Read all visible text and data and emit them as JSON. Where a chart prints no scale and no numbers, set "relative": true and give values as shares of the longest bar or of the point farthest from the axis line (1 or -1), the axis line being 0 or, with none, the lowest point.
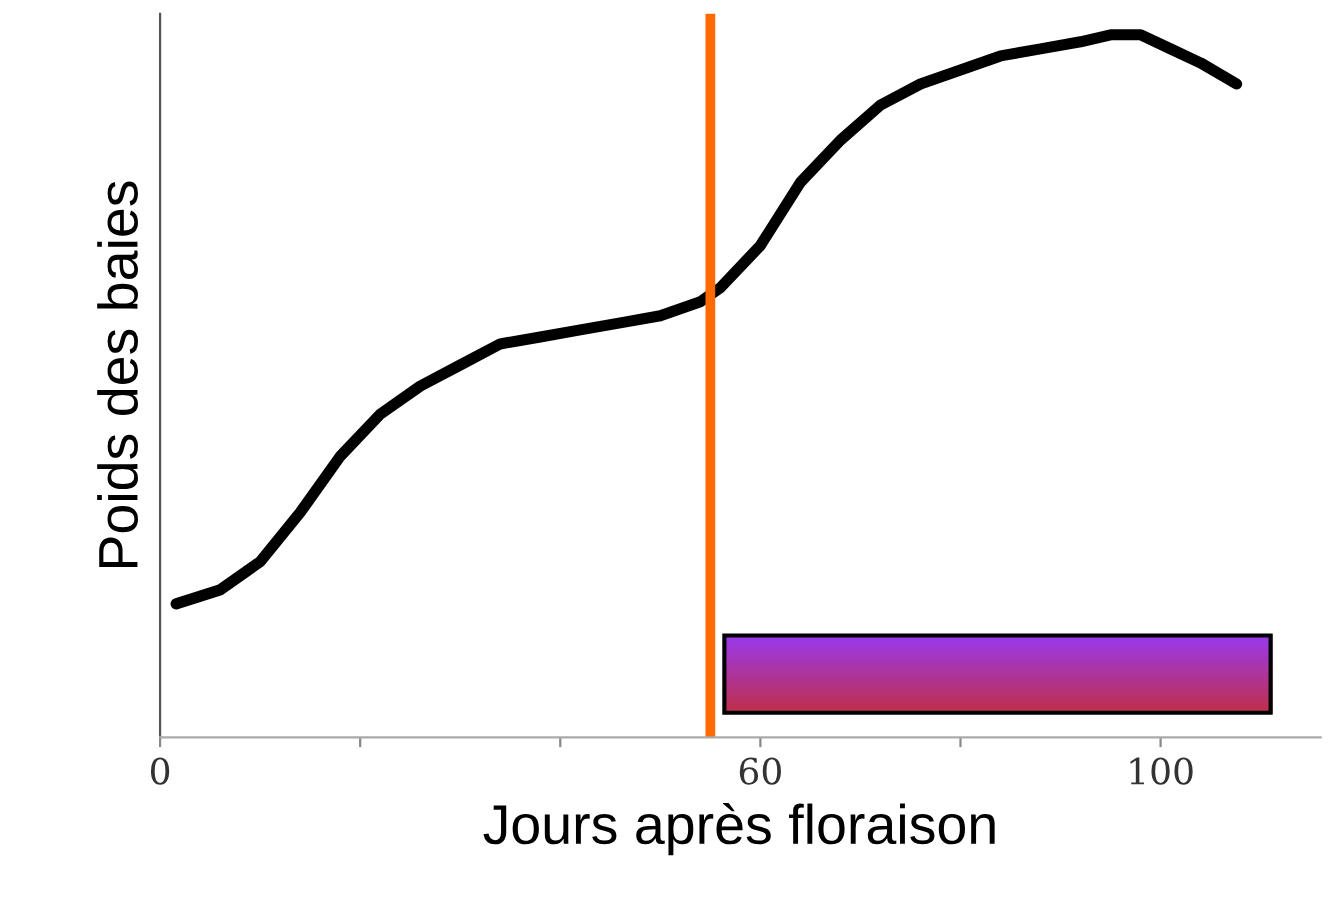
{
  "chart_data": {
    "type": "line",
    "relative": true,
    "xlabel": "Jours après floraison",
    "ylabel": "Poids des baies",
    "xlim": [
      0,
      116
    ],
    "xticks": [
      0,
      {
        "value": 20,
        "label": null
      },
      {
        "value": 40,
        "label": null
      },
      60,
      {
        "value": 80,
        "label": null
      },
      100
    ],
    "x": [
      1.6,
      6,
      10,
      14,
      18,
      22,
      26,
      30,
      34,
      38,
      42,
      46,
      50,
      54,
      56,
      60,
      64,
      68,
      72,
      76,
      80,
      84,
      88,
      92,
      95,
      98,
      101,
      104,
      107.6
    ],
    "series": [
      {
        "color": "#000000",
        "values": [
          0.19,
          0.21,
          0.25,
          0.32,
          0.4,
          0.46,
          0.5,
          0.53,
          0.56,
          0.57,
          0.58,
          0.59,
          0.6,
          0.62,
          0.64,
          0.7,
          0.79,
          0.85,
          0.9,
          0.93,
          0.95,
          0.97,
          0.98,
          0.99,
          1.0,
          1.0,
          0.98,
          0.96,
          0.93
        ]
      }
    ],
    "bands": [
      {
        "axis": "x",
        "from": 56.4,
        "to": 111,
        "color": "#9a3af0"
      }
    ],
    "ref_lines": [
      {
        "axis": "x",
        "value": 55,
        "color": "#ff6a00",
        "line_style": "solid"
      }
    ],
    "grid": false,
    "legend": false,
    "marker": "none",
    "line_style": "solid"
  }
}
